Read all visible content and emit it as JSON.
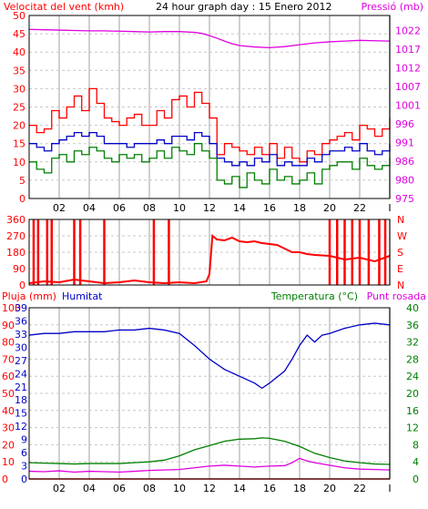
{
  "chart_data": [
    {
      "type": "line",
      "header": {
        "left_label": "Velocitat del vent (kmh)",
        "center_label": "24 hour graph day : 15 Enero 2012",
        "right_label": "Pressió (mb)"
      },
      "x_ticks": [
        "02",
        "04",
        "06",
        "08",
        "10",
        "12",
        "14",
        "16",
        "18",
        "20",
        "22",
        "I"
      ],
      "xlim": [
        0,
        24
      ],
      "left_axis": {
        "ylim": [
          0,
          50
        ],
        "ticks": [
          "0",
          "5",
          "10",
          "15",
          "20",
          "25",
          "30",
          "35",
          "40",
          "45",
          "50"
        ]
      },
      "right_axis": {
        "ylim": [
          975,
          1025
        ],
        "ticks": [
          "975",
          "980",
          "986",
          "991",
          "996",
          "1001",
          "1007",
          "1012",
          "1017",
          "1022"
        ]
      },
      "grid": true,
      "series": [
        {
          "key": "gust",
          "color": "#ff0000",
          "axis": "left",
          "x": [
            0,
            0.5,
            1,
            1.5,
            2,
            2.5,
            3,
            3.5,
            4,
            4.5,
            5,
            5.5,
            6,
            6.5,
            7,
            7.5,
            8,
            8.5,
            9,
            9.5,
            10,
            10.5,
            11,
            11.5,
            12,
            12.5,
            13,
            13.5,
            14,
            14.5,
            15,
            15.5,
            16,
            16.5,
            17,
            17.5,
            18,
            18.5,
            19,
            19.5,
            20,
            20.5,
            21,
            21.5,
            22,
            22.5,
            23,
            23.5,
            24
          ],
          "values": [
            20,
            18,
            19,
            24,
            22,
            25,
            28,
            24,
            30,
            26,
            22,
            21,
            20,
            22,
            23,
            20,
            20,
            24,
            22,
            27,
            28,
            25,
            29,
            26,
            22,
            12,
            15,
            14,
            13,
            12,
            14,
            12,
            15,
            11,
            14,
            11,
            10,
            13,
            12,
            15,
            16,
            17,
            18,
            16,
            20,
            19,
            17,
            19,
            22
          ]
        },
        {
          "key": "average",
          "color": "#0000c8",
          "axis": "left",
          "x": [
            0,
            0.5,
            1,
            1.5,
            2,
            2.5,
            3,
            3.5,
            4,
            4.5,
            5,
            5.5,
            6,
            6.5,
            7,
            7.5,
            8,
            8.5,
            9,
            9.5,
            10,
            10.5,
            11,
            11.5,
            12,
            12.5,
            13,
            13.5,
            14,
            14.5,
            15,
            15.5,
            16,
            16.5,
            17,
            17.5,
            18,
            18.5,
            19,
            19.5,
            20,
            20.5,
            21,
            21.5,
            22,
            22.5,
            23,
            23.5,
            24
          ],
          "values": [
            15,
            14,
            13,
            15,
            16,
            17,
            18,
            17,
            18,
            17,
            15,
            15,
            15,
            14,
            15,
            15,
            15,
            16,
            15,
            17,
            17,
            16,
            18,
            17,
            15,
            11,
            10,
            9,
            10,
            9,
            11,
            10,
            12,
            9,
            10,
            9,
            9,
            11,
            10,
            12,
            13,
            13,
            14,
            13,
            15,
            13,
            12,
            13,
            15
          ]
        },
        {
          "key": "wind",
          "color": "#008000",
          "axis": "left",
          "x": [
            0,
            0.5,
            1,
            1.5,
            2,
            2.5,
            3,
            3.5,
            4,
            4.5,
            5,
            5.5,
            6,
            6.5,
            7,
            7.5,
            8,
            8.5,
            9,
            9.5,
            10,
            10.5,
            11,
            11.5,
            12,
            12.5,
            13,
            13.5,
            14,
            14.5,
            15,
            15.5,
            16,
            16.5,
            17,
            17.5,
            18,
            18.5,
            19,
            19.5,
            20,
            20.5,
            21,
            21.5,
            22,
            22.5,
            23,
            23.5,
            24
          ],
          "values": [
            10,
            8,
            7,
            11,
            12,
            10,
            13,
            12,
            14,
            13,
            11,
            10,
            12,
            11,
            12,
            10,
            11,
            13,
            11,
            14,
            13,
            12,
            15,
            13,
            11,
            5,
            4,
            6,
            3,
            7,
            5,
            4,
            8,
            5,
            6,
            4,
            5,
            7,
            4,
            8,
            9,
            10,
            10,
            8,
            11,
            9,
            8,
            9,
            11
          ]
        },
        {
          "key": "pressure",
          "color": "#e000e0",
          "axis": "right",
          "x": [
            0,
            1,
            2,
            3,
            4,
            5,
            6,
            7,
            8,
            9,
            10,
            11,
            11.5,
            12,
            12.5,
            13,
            13.5,
            14,
            15,
            16,
            17,
            18,
            19,
            20,
            21,
            22,
            23,
            24
          ],
          "values": [
            1021.2,
            1021.1,
            1021.0,
            1020.9,
            1020.8,
            1020.8,
            1020.7,
            1020.6,
            1020.5,
            1020.6,
            1020.6,
            1020.4,
            1020.1,
            1019.5,
            1018.8,
            1018.0,
            1017.3,
            1016.8,
            1016.4,
            1016.2,
            1016.5,
            1017.0,
            1017.5,
            1017.8,
            1018.0,
            1018.2,
            1018.1,
            1018.0
          ]
        }
      ]
    },
    {
      "type": "line",
      "x_ticks": [
        "02",
        "04",
        "06",
        "08",
        "10",
        "12",
        "14",
        "16",
        "18",
        "20",
        "22",
        "I"
      ],
      "xlim": [
        0,
        24
      ],
      "left_axis": {
        "ylim": [
          0,
          360
        ],
        "ticks": [
          "0",
          "90",
          "180",
          "270",
          "360"
        ]
      },
      "right_labels": [
        "N",
        "W",
        "S",
        "E",
        "N"
      ],
      "grid": true,
      "series": [
        {
          "key": "direction",
          "color": "#ff0000",
          "x": [
            0,
            1,
            2,
            3,
            4,
            5,
            6,
            7,
            8,
            9,
            10,
            11,
            11.8,
            12,
            12.2,
            12.5,
            13,
            13.5,
            14,
            14.5,
            15,
            15.5,
            16,
            16.5,
            17,
            17.5,
            18,
            18.5,
            19,
            20,
            21,
            22,
            23,
            24
          ],
          "values": [
            10,
            20,
            15,
            30,
            20,
            10,
            15,
            25,
            15,
            10,
            15,
            10,
            20,
            60,
            270,
            250,
            245,
            260,
            240,
            235,
            240,
            230,
            225,
            220,
            200,
            180,
            180,
            170,
            165,
            160,
            140,
            150,
            130,
            160
          ]
        },
        {
          "key": "direction-spikes",
          "color": "#ff0000",
          "x": [
            0.3,
            0.6,
            1.2,
            1.5,
            3.0,
            3.4,
            5.0,
            8.3,
            9.3,
            20.0,
            20.5,
            21.0,
            21.5,
            22.0,
            22.6,
            23.3,
            23.7
          ],
          "values": [
            360,
            360,
            360,
            360,
            360,
            360,
            360,
            360,
            360,
            360,
            360,
            360,
            360,
            360,
            360,
            360,
            360
          ]
        }
      ]
    },
    {
      "type": "line",
      "header": {
        "left_label": "Pluja (mm)",
        "second_label": "Humitat",
        "right_label_1": "Temperatura (°C)",
        "right_label_2": "Punt rosada"
      },
      "x_ticks": [
        "02",
        "04",
        "06",
        "08",
        "10",
        "12",
        "14",
        "16",
        "18",
        "20",
        "22",
        "I"
      ],
      "xlim": [
        0,
        24
      ],
      "left_axis": {
        "ylim": [
          0,
          100
        ],
        "ticks": [
          "0",
          "10",
          "20",
          "30",
          "40",
          "50",
          "60",
          "70",
          "80",
          "90",
          "100"
        ]
      },
      "second_axis": {
        "ylim": [
          0,
          40
        ],
        "ticks": [
          "0",
          "3",
          "6",
          "9",
          "12",
          "15",
          "18",
          "21",
          "24",
          "27",
          "30",
          "33",
          "36",
          "39"
        ]
      },
      "right_axis": {
        "ylim": [
          0,
          40
        ],
        "ticks": [
          "0",
          "4",
          "8",
          "12",
          "16",
          "20",
          "24",
          "28",
          "32",
          "36",
          "40"
        ]
      },
      "grid": true,
      "series": [
        {
          "key": "humidity",
          "color": "#0000c8",
          "axis": "left",
          "x": [
            0,
            1,
            2,
            3,
            4,
            5,
            6,
            7,
            8,
            9,
            10,
            11,
            12,
            13,
            14,
            15,
            15.5,
            16,
            17,
            17.5,
            18,
            18.5,
            19,
            19.5,
            20,
            21,
            22,
            23,
            24
          ],
          "values": [
            84,
            85,
            85,
            86,
            86,
            86,
            87,
            87,
            88,
            87,
            85,
            78,
            70,
            64,
            60,
            56,
            53,
            56,
            63,
            70,
            78,
            84,
            80,
            84,
            85,
            88,
            90,
            91,
            90
          ]
        },
        {
          "key": "temperature",
          "color": "#008000",
          "axis": "right",
          "x": [
            0,
            1,
            2,
            3,
            4,
            5,
            6,
            7,
            8,
            9,
            10,
            11,
            12,
            13,
            14,
            15,
            15.5,
            16,
            17,
            18,
            19,
            20,
            21,
            22,
            23,
            24
          ],
          "values": [
            3.8,
            3.7,
            3.6,
            3.5,
            3.6,
            3.6,
            3.6,
            3.8,
            4.0,
            4.4,
            5.4,
            6.8,
            7.8,
            8.8,
            9.3,
            9.4,
            9.6,
            9.5,
            8.8,
            7.6,
            6.0,
            5.0,
            4.2,
            3.8,
            3.5,
            3.4
          ]
        },
        {
          "key": "dewpoint",
          "color": "#e000e0",
          "axis": "right",
          "x": [
            0,
            1,
            2,
            3,
            4,
            5,
            6,
            7,
            8,
            9,
            10,
            11,
            12,
            13,
            14,
            15,
            16,
            17,
            17.5,
            18,
            18.5,
            19,
            20,
            21,
            22,
            23,
            24
          ],
          "values": [
            1.8,
            1.7,
            1.9,
            1.6,
            1.8,
            1.7,
            1.6,
            1.8,
            2.0,
            2.1,
            2.2,
            2.6,
            3.0,
            3.2,
            3.0,
            2.8,
            3.0,
            3.1,
            3.8,
            4.8,
            4.2,
            3.8,
            3.2,
            2.6,
            2.3,
            2.2,
            2.1
          ]
        },
        {
          "key": "rain",
          "color": "#ff0000",
          "axis": "left",
          "x": [
            0,
            24
          ],
          "values": [
            0,
            0
          ]
        }
      ]
    }
  ]
}
